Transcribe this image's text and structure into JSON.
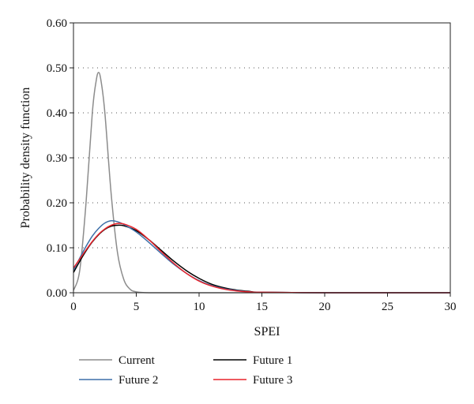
{
  "chart_data": {
    "type": "line",
    "title": "",
    "xlabel": "SPEI",
    "ylabel": "Probability density function",
    "xlim": [
      0,
      30
    ],
    "ylim": [
      0,
      0.6
    ],
    "x_ticks": [
      "0",
      "5",
      "10",
      "15",
      "20",
      "25",
      "30"
    ],
    "y_ticks": [
      "0.00",
      "0.10",
      "0.20",
      "0.30",
      "0.40",
      "0.50",
      "0.60"
    ],
    "grid": "horizontal-dotted",
    "legend_position": "bottom",
    "series": [
      {
        "name": "Current",
        "color": "#8c8c8c",
        "x": [
          0,
          0.5,
          1,
          1.5,
          1.8,
          2,
          2.2,
          2.5,
          3,
          3.5,
          4,
          4.5,
          5,
          6,
          10,
          15,
          20,
          25,
          30
        ],
        "y": [
          0.005,
          0.05,
          0.2,
          0.4,
          0.47,
          0.49,
          0.47,
          0.4,
          0.22,
          0.09,
          0.03,
          0.008,
          0.002,
          0.0,
          0.0,
          0.0,
          0.0,
          0.0,
          0.0
        ]
      },
      {
        "name": "Future 1",
        "color": "#000000",
        "x": [
          0,
          0.5,
          1,
          1.5,
          2,
          2.5,
          3,
          3.5,
          4,
          5,
          6,
          7,
          8,
          9,
          10,
          11,
          12,
          13,
          14,
          15,
          20,
          25,
          30
        ],
        "y": [
          0.045,
          0.07,
          0.093,
          0.113,
          0.129,
          0.141,
          0.148,
          0.15,
          0.149,
          0.138,
          0.118,
          0.094,
          0.07,
          0.049,
          0.032,
          0.019,
          0.011,
          0.006,
          0.003,
          0.001,
          0.0,
          0.0,
          0.0
        ]
      },
      {
        "name": "Future 2",
        "color": "#3d6fa8",
        "x": [
          0,
          0.5,
          1,
          1.5,
          2,
          2.5,
          3,
          3.5,
          4,
          5,
          6,
          7,
          8,
          9,
          10,
          11,
          12,
          13,
          14,
          15,
          20,
          25,
          30
        ],
        "y": [
          0.05,
          0.077,
          0.103,
          0.126,
          0.143,
          0.155,
          0.16,
          0.158,
          0.152,
          0.135,
          0.112,
          0.087,
          0.063,
          0.043,
          0.027,
          0.016,
          0.009,
          0.005,
          0.002,
          0.001,
          0.0,
          0.0,
          0.0
        ]
      },
      {
        "name": "Future 3",
        "color": "#e8242c",
        "x": [
          0,
          0.5,
          1,
          1.5,
          2,
          2.5,
          3,
          3.5,
          4,
          5,
          6,
          7,
          8,
          9,
          10,
          11,
          12,
          13,
          14,
          15,
          20,
          25,
          30
        ],
        "y": [
          0.055,
          0.075,
          0.095,
          0.114,
          0.13,
          0.142,
          0.15,
          0.154,
          0.153,
          0.141,
          0.118,
          0.091,
          0.065,
          0.043,
          0.026,
          0.015,
          0.008,
          0.004,
          0.002,
          0.001,
          0.0,
          0.0,
          0.0
        ]
      }
    ]
  }
}
